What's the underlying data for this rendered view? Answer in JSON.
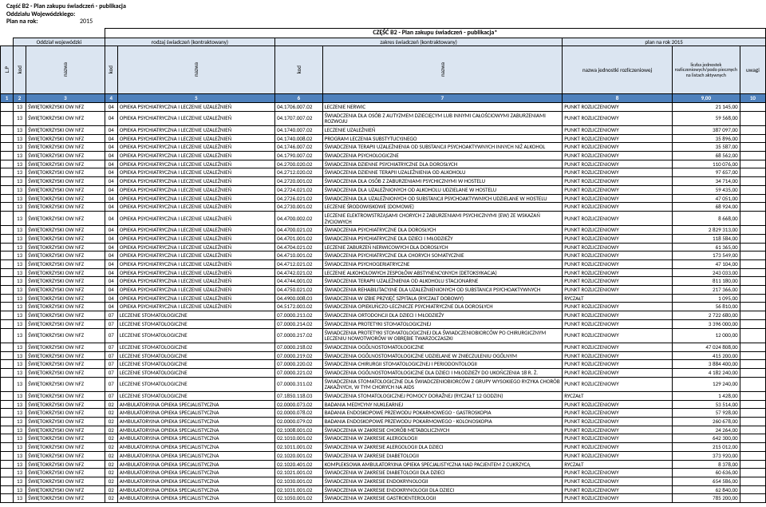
{
  "doc": {
    "title1": "Część B2 - Plan zakupu świadczeń - publikacja",
    "title2": "Oddziału Wojewódzkiego:",
    "plan_label": "Plan na rok:",
    "plan_year": "2015"
  },
  "colors": {
    "header_bg": "#dbe5f1",
    "num_head_bg": "#4f81bd",
    "num_head_fg": "#ffffff",
    "border": "#000000"
  },
  "top": {
    "banner": "CZĘŚĆ B2 - Plan zakupu świadczeń - publikacja*",
    "group_oddzial": "Oddział wojewódzki",
    "group_rodzaj": "rodzaj świadczeń (kontraktowany)",
    "group_zakres": "zakres świadczeń (kontraktowany)",
    "group_plan": "plan na rok 2015",
    "lp": "L.P",
    "kod": "kod",
    "nazwa": "nazwa",
    "jedn": "nazwa jednostki rozliczeniowej",
    "liczba": "liczba jednostek rozliczeniowych/podo piecznych na listach aktywnych",
    "uwagi": "uwagi"
  },
  "num_head": [
    "1",
    "2",
    "3",
    "4",
    "5",
    "6",
    "7",
    "8",
    "9,00",
    "10"
  ],
  "rows": [
    {
      "n": "13",
      "ow": "ŚWIĘTOKRZYSKI OW NFZ",
      "rk": "04",
      "rn": "OPIEKA PSYCHIATRYCZNA I LECZENIE UZALEŻNIEŃ",
      "zk": "04.1706.007.02",
      "zn": "LECZENIE NERWIC",
      "j": "PUNKT ROZLICZENIOWY",
      "v": "21 145,00"
    },
    {
      "n": "13",
      "ow": "ŚWIĘTOKRZYSKI OW NFZ",
      "rk": "04",
      "rn": "OPIEKA PSYCHIATRYCZNA I LECZENIE UZALEŻNIEŃ",
      "zk": "04.1707.007.02",
      "zn": "ŚWIADCZENIA DLA OSÓB Z AUTYZMEM DZIECIĘCYM LUB INNYMI CAŁOŚCIOWYMI ZABURZENIAMI ROZWOJU",
      "j": "PUNKT ROZLICZENIOWY",
      "v": "59 568,00"
    },
    {
      "n": "13",
      "ow": "ŚWIĘTOKRZYSKI OW NFZ",
      "rk": "04",
      "rn": "OPIEKA PSYCHIATRYCZNA I LECZENIE UZALEŻNIEŃ",
      "zk": "04.1740.007.02",
      "zn": "LECZENIE UZALEŻNIEŃ",
      "j": "PUNKT ROZLICZENIOWY",
      "v": "387 097,00"
    },
    {
      "n": "13",
      "ow": "ŚWIĘTOKRZYSKI OW NFZ",
      "rk": "04",
      "rn": "OPIEKA PSYCHIATRYCZNA I LECZENIE UZALEŻNIEŃ",
      "zk": "04.1740.008.02",
      "zn": "PROGRAM LECZENIA SUBSTYTUCYJNEGO",
      "j": "PUNKT ROZLICZENIOWY",
      "v": "35 896,00"
    },
    {
      "n": "13",
      "ow": "ŚWIĘTOKRZYSKI OW NFZ",
      "rk": "04",
      "rn": "OPIEKA PSYCHIATRYCZNA I LECZENIE UZALEŻNIEŃ",
      "zk": "04.1746.007.02",
      "zn": "ŚWIADCZENIA TERAPII UZALEŻNIENIA OD SUBSTANCJI PSYCHOAKTYWNYCH INNYCH NIŻ ALKOHOL",
      "j": "PUNKT ROZLICZENIOWY",
      "v": "35 587,00"
    },
    {
      "n": "13",
      "ow": "ŚWIĘTOKRZYSKI OW NFZ",
      "rk": "04",
      "rn": "OPIEKA PSYCHIATRYCZNA I LECZENIE UZALEŻNIEŃ",
      "zk": "04.1790.007.02",
      "zn": "ŚWIADCZENIA PSYCHOLOGICZNE",
      "j": "PUNKT ROZLICZENIOWY",
      "v": "68 562,00"
    },
    {
      "n": "13",
      "ow": "ŚWIĘTOKRZYSKI OW NFZ",
      "rk": "04",
      "rn": "OPIEKA PSYCHIATRYCZNA I LECZENIE UZALEŻNIEŃ",
      "zk": "04.2700.020.02",
      "zn": "ŚWIADCZENIA DZIENNE PSYCHIATRYCZNE DLA DOROSŁYCH",
      "j": "PUNKT ROZLICZENIOWY",
      "v": "110 076,00"
    },
    {
      "n": "13",
      "ow": "ŚWIĘTOKRZYSKI OW NFZ",
      "rk": "04",
      "rn": "OPIEKA PSYCHIATRYCZNA I LECZENIE UZALEŻNIEŃ",
      "zk": "04.2712.020.02",
      "zn": "ŚWIADCZENIA DZIENNE TERAPII UZALEŻNIENIA OD ALKOHOLU",
      "j": "PUNKT ROZLICZENIOWY",
      "v": "97 657,00"
    },
    {
      "n": "13",
      "ow": "ŚWIĘTOKRZYSKI OW NFZ",
      "rk": "04",
      "rn": "OPIEKA PSYCHIATRYCZNA I LECZENIE UZALEŻNIEŃ",
      "zk": "04.2720.001.02",
      "zn": "ŚWIADCZENIA DLA OSÓB Z ZABURZENIAMI PSYCHICZNYMI W HOSTELU",
      "j": "PUNKT ROZLICZENIOWY",
      "v": "34 714,00"
    },
    {
      "n": "13",
      "ow": "ŚWIĘTOKRZYSKI OW NFZ",
      "rk": "04",
      "rn": "OPIEKA PSYCHIATRYCZNA I LECZENIE UZALEŻNIEŃ",
      "zk": "04.2724.021.02",
      "zn": "ŚWIADCZENIA DLA UZALEŻNIONYCH OD ALKOHOLU UDZIELANE W HOSTELU",
      "j": "PUNKT ROZLICZENIOWY",
      "v": "59 435,00"
    },
    {
      "n": "13",
      "ow": "ŚWIĘTOKRZYSKI OW NFZ",
      "rk": "04",
      "rn": "OPIEKA PSYCHIATRYCZNA I LECZENIE UZALEŻNIEŃ",
      "zk": "04.2726.021.02",
      "zn": "ŚWIADCZENIA  DLA UZALEŻNIONYCH OD SUBSTANCJI PSYCHOAKTYWNYCH UDZIELANE W HOSTELU",
      "j": "PUNKT ROZLICZENIOWY",
      "v": "47 051,00"
    },
    {
      "n": "13",
      "ow": "ŚWIĘTOKRZYSKI OW NFZ",
      "rk": "04",
      "rn": "OPIEKA PSYCHIATRYCZNA I LECZENIE UZALEŻNIEŃ",
      "zk": "04.2730.001.02",
      "zn": "LECZENIE ŚRODOWISKOWE (DOMOWE)",
      "j": "PUNKT ROZLICZENIOWY",
      "v": "68 924,00"
    },
    {
      "n": "13",
      "ow": "ŚWIĘTOKRZYSKI OW NFZ",
      "rk": "04",
      "rn": "OPIEKA PSYCHIATRYCZNA I LECZENIE UZALEŻNIEŃ",
      "zk": "04.4700.002.02",
      "zn": "LECZENIE ELEKTROWSTRZĄSAMI CHORYCH Z ZABURZENIAMI PSYCHICZNYMI (EW) ZE WSKAZAŃ ŻYCIOWYCH",
      "j": "PUNKT ROZLICZENIOWY",
      "v": "8 668,00"
    },
    {
      "n": "13",
      "ow": "ŚWIĘTOKRZYSKI OW NFZ",
      "rk": "04",
      "rn": "OPIEKA PSYCHIATRYCZNA I LECZENIE UZALEŻNIEŃ",
      "zk": "04.4700.021.02",
      "zn": "ŚWIADCZENIA PSYCHIATRYCZNE DLA DOROSŁYCH",
      "j": "PUNKT ROZLICZENIOWY",
      "v": "2 829 313,00"
    },
    {
      "n": "13",
      "ow": "ŚWIĘTOKRZYSKI OW NFZ",
      "rk": "04",
      "rn": "OPIEKA PSYCHIATRYCZNA I LECZENIE UZALEŻNIEŃ",
      "zk": "04.4701.001.02",
      "zn": "ŚWIADCZENIA  PSYCHIATRYCZNE DLA DZIECI I MŁODZIEŻY",
      "j": "PUNKT ROZLICZENIOWY",
      "v": "118 584,00"
    },
    {
      "n": "13",
      "ow": "ŚWIĘTOKRZYSKI OW NFZ",
      "rk": "04",
      "rn": "OPIEKA PSYCHIATRYCZNA I LECZENIE UZALEŻNIEŃ",
      "zk": "04.4704.021.02",
      "zn": "LECZENIE ZABURZEŃ NERWICOWYCH DLA DOROSŁYCH",
      "j": "PUNKT ROZLICZENIOWY",
      "v": "61 365,00"
    },
    {
      "n": "13",
      "ow": "ŚWIĘTOKRZYSKI OW NFZ",
      "rk": "04",
      "rn": "OPIEKA PSYCHIATRYCZNA I LECZENIE UZALEŻNIEŃ",
      "zk": "04.4710.001.02",
      "zn": "ŚWIADCZENIA PSYCHIATRYCZNE DLA CHORYCH SOMATYCZNIE",
      "j": "PUNKT ROZLICZENIOWY",
      "v": "173 549,00"
    },
    {
      "n": "13",
      "ow": "ŚWIĘTOKRZYSKI OW NFZ",
      "rk": "04",
      "rn": "OPIEKA PSYCHIATRYCZNA I LECZENIE UZALEŻNIEŃ",
      "zk": "04.4712.021.02",
      "zn": "ŚWIADCZENIA PSYCHOGERIATRYCZNE",
      "j": "PUNKT ROZLICZENIOWY",
      "v": "47 104,00"
    },
    {
      "n": "13",
      "ow": "ŚWIĘTOKRZYSKI OW NFZ",
      "rk": "04",
      "rn": "OPIEKA PSYCHIATRYCZNA I LECZENIE UZALEŻNIEŃ",
      "zk": "04.4742.021.02",
      "zn": "LECZENIE ALKOHOLOWYCH ZESPOŁÓW ABSTYNENCYJNYCH (DETOKSYKACJA)",
      "j": "PUNKT ROZLICZENIOWY",
      "v": "243 033,00"
    },
    {
      "n": "13",
      "ow": "ŚWIĘTOKRZYSKI OW NFZ",
      "rk": "04",
      "rn": "OPIEKA PSYCHIATRYCZNA I LECZENIE UZALEŻNIEŃ",
      "zk": "04.4744.001.02",
      "zn": "ŚWIADCZENIA TERAPII UZALEŻNIENIA OD ALKOHOLU STACJONARNE",
      "j": "PUNKT ROZLICZENIOWY",
      "v": "811 180,00"
    },
    {
      "n": "13",
      "ow": "ŚWIĘTOKRZYSKI OW NFZ",
      "rk": "04",
      "rn": "OPIEKA PSYCHIATRYCZNA I LECZENIE UZALEŻNIEŃ",
      "zk": "04.4750.021.02",
      "zn": "ŚWIADCZENIA REHABILITACYJNE DLA UZALEŻNIENIONYCH OD SUBSTANCJI PSYCHOAKTYWNYCH",
      "j": "PUNKT ROZLICZENIOWY",
      "v": "217 366,00"
    },
    {
      "n": "13",
      "ow": "ŚWIĘTOKRZYSKI OW NFZ",
      "rk": "04",
      "rn": "OPIEKA PSYCHIATRYCZNA I LECZENIE UZALEŻNIEŃ",
      "zk": "04.4900.008.03",
      "zn": "ŚWIADCZENIA W IZBIE PRZYJĘĆ SZPITALA (RYCZAŁT DOBOWY)",
      "j": "RYCZAŁT",
      "v": "1 095,00"
    },
    {
      "n": "13",
      "ow": "ŚWIĘTOKRZYSKI OW NFZ",
      "rk": "04",
      "rn": "OPIEKA PSYCHIATRYCZNA I LECZENIE UZALEŻNIEŃ",
      "zk": "04.5172.003.02",
      "zn": "ŚWIADCZENIA OPIEKUŃCZO-LECZNICZE PSYCHIATRYCZNE DLA DOROSŁYCH",
      "j": "PUNKT ROZLICZENIOWY",
      "v": "56 810,00"
    },
    {
      "n": "13",
      "ow": "ŚWIĘTOKRZYSKI OW NFZ",
      "rk": "07",
      "rn": "LECZENIE STOMATOLOGICZNE",
      "zk": "07.0000.213.02",
      "zn": "ŚWIADCZENIA ORTODONCJI DLA DZIECI I MŁODZIEŻY",
      "j": "PUNKT ROZLICZENIOWY",
      "v": "2 722 680,00"
    },
    {
      "n": "13",
      "ow": "ŚWIĘTOKRZYSKI OW NFZ",
      "rk": "07",
      "rn": "LECZENIE STOMATOLOGICZNE",
      "zk": "07.0000.214.02",
      "zn": "ŚWIADCZENIA PROTETYKI STOMATOLOGICZNEJ",
      "j": "PUNKT ROZLICZENIOWY",
      "v": "3 396 000,00"
    },
    {
      "n": "13",
      "ow": "ŚWIĘTOKRZYSKI OW NFZ",
      "rk": "07",
      "rn": "LECZENIE STOMATOLOGICZNE",
      "zk": "07.0000.217.02",
      "zn": "ŚWIADCZENIA PROTETYKI STOMATOLOGICZNEJ DLA ŚWIADCZENIOBIORCÓW PO CHIRURGICZNYM LECZENIU NOWOTWORÓW W OBRĘBIE TWARZOCZASZKI",
      "j": "PUNKT ROZLICZENIOWY",
      "v": "12 000,00"
    },
    {
      "n": "13",
      "ow": "ŚWIĘTOKRZYSKI OW NFZ",
      "rk": "07",
      "rn": "LECZENIE STOMATOLOGICZNE",
      "zk": "07.0000.218.02",
      "zn": "ŚWIADCZENIA OGÓLNOSTOMATOLOGICZNE",
      "j": "PUNKT ROZLICZENIOWY",
      "v": "47 024 808,00"
    },
    {
      "n": "13",
      "ow": "ŚWIĘTOKRZYSKI OW NFZ",
      "rk": "07",
      "rn": "LECZENIE STOMATOLOGICZNE",
      "zk": "07.0000.219.02",
      "zn": "ŚWIADCZENIA OGÓLNOSTOMATOLOGICZNE UDZIELANE W ZNIECZULENIU OGÓLNYM",
      "j": "PUNKT ROZLICZENIOWY",
      "v": "415 200,00"
    },
    {
      "n": "13",
      "ow": "ŚWIĘTOKRZYSKI OW NFZ",
      "rk": "07",
      "rn": "LECZENIE STOMATOLOGICZNE",
      "zk": "07.0000.220.02",
      "zn": "ŚWIADCZENIA CHIRURGII STOMATOLOGICZNEJ I PERIODONTOLOGII",
      "j": "PUNKT ROZLICZENIOWY",
      "v": "3 884 400,00"
    },
    {
      "n": "13",
      "ow": "ŚWIĘTOKRZYSKI OW NFZ",
      "rk": "07",
      "rn": "LECZENIE STOMATOLOGICZNE",
      "zk": "07.0000.221.02",
      "zn": "ŚWIADCZENIA OGÓLNOSTOMATOLOGICZNE DLA DZIECI I MŁODZIEŻY DO UKOŃCZENIA 18 R. Ż.",
      "j": "PUNKT ROZLICZENIOWY",
      "v": "4 182 240,00"
    },
    {
      "n": "13",
      "ow": "ŚWIĘTOKRZYSKI OW NFZ",
      "rk": "07",
      "rn": "LECZENIE STOMATOLOGICZNE",
      "zk": "07.0000.311.02",
      "zn": "ŚWIADCZENIA STOMATOLOGICZNE DLA ŚWIADCZENIOBIORCÓW Z GRUPY WYSOKIEGO RYZYKA CHORÓB ZAKAŹNYCH, W TYM CHORYCH NA AIDS",
      "j": "PUNKT ROZLICZENIOWY",
      "v": "129 240,00"
    },
    {
      "n": "13",
      "ow": "ŚWIĘTOKRZYSKI OW NFZ",
      "rk": "07",
      "rn": "LECZENIE STOMATOLOGICZNE",
      "zk": "07.1850.118.03",
      "zn": "ŚWIADCZENIA STOMATOLOGICZNEJ POMOCY DORAŹNEJ (RYCZAŁT 12 GODZIN)",
      "j": "RYCZAŁT",
      "v": "1 428,00"
    },
    {
      "n": "13",
      "ow": "ŚWIĘTOKRZYSKI OW NFZ",
      "rk": "02",
      "rn": "AMBULATORYJNA OPIEKA SPECJALISTYCZNA",
      "zk": "02.0000.073.02",
      "zn": "BADANIA MEDYCYNY NUKLEARNEJ",
      "j": "PUNKT ROZLICZENIOWY",
      "v": "53 514,00"
    },
    {
      "n": "13",
      "ow": "ŚWIĘTOKRZYSKI OW NFZ",
      "rk": "02",
      "rn": "AMBULATORYJNA OPIEKA SPECJALISTYCZNA",
      "zk": "02.0000.078.02",
      "zn": "BADANIA ENDOSKOPOWE PRZEWODU POKARMOWEGO - GASTROSKOPIA",
      "j": "PUNKT ROZLICZENIOWY",
      "v": "57 928,00"
    },
    {
      "n": "13",
      "ow": "ŚWIĘTOKRZYSKI OW NFZ",
      "rk": "02",
      "rn": "AMBULATORYJNA OPIEKA SPECJALISTYCZNA",
      "zk": "02.0000.079.02",
      "zn": "BADANIA ENDOSKOPOWE PRZEWODU POKARMOWEGO - KOLONOSKOPIA",
      "j": "PUNKT ROZLICZENIOWY",
      "v": "260 678,00"
    },
    {
      "n": "13",
      "ow": "ŚWIĘTOKRZYSKI OW NFZ",
      "rk": "02",
      "rn": "AMBULATORYJNA OPIEKA SPECJALISTYCZNA",
      "zk": "02.1008.001.02",
      "zn": "ŚWIADCZENIA W ZAKRESIE CHORÓB METABOLICZNYCH",
      "j": "PUNKT ROZLICZENIOWY",
      "v": "24 264,00"
    },
    {
      "n": "13",
      "ow": "ŚWIĘTOKRZYSKI OW NFZ",
      "rk": "02",
      "rn": "AMBULATORYJNA OPIEKA SPECJALISTYCZNA",
      "zk": "02.1010.001.02",
      "zn": "ŚWIADCZENIA W ZAKRESIE ALERGOLOGII",
      "j": "PUNKT ROZLICZENIOWY",
      "v": "642 300,00"
    },
    {
      "n": "13",
      "ow": "ŚWIĘTOKRZYSKI OW NFZ",
      "rk": "02",
      "rn": "AMBULATORYJNA OPIEKA SPECJALISTYCZNA",
      "zk": "02.1011.001.02",
      "zn": "ŚWIADCZENIA W ZAKRESIE ALERGOLOGII DLA DZIECI",
      "j": "PUNKT ROZLICZENIOWY",
      "v": "215 012,00"
    },
    {
      "n": "13",
      "ow": "ŚWIĘTOKRZYSKI OW NFZ",
      "rk": "02",
      "rn": "AMBULATORYJNA OPIEKA SPECJALISTYCZNA",
      "zk": "02.1020.001.02",
      "zn": "ŚWIADCZENIA W ZAKRESIE DIABETOLOGII",
      "j": "PUNKT ROZLICZENIOWY",
      "v": "373 920,00"
    },
    {
      "n": "13",
      "ow": "ŚWIĘTOKRZYSKI OW NFZ",
      "rk": "02",
      "rn": "AMBULATORYJNA OPIEKA SPECJALISTYCZNA",
      "zk": "02.1020.401.02",
      "zn": "KOMPLEKSOWA AMBULATORYJNA OPIEKA SPECJALISTYCZNA NAD PACJENTEM Z CUKRZYCĄ",
      "j": "RYCZAŁT",
      "v": "8 378,00"
    },
    {
      "n": "13",
      "ow": "ŚWIĘTOKRZYSKI OW NFZ",
      "rk": "02",
      "rn": "AMBULATORYJNA OPIEKA SPECJALISTYCZNA",
      "zk": "02.1021.001.02",
      "zn": "ŚWIADCZENIA W ZAKRESIE DIABETOLOGII DLA DZIECI",
      "j": "PUNKT ROZLICZENIOWY",
      "v": "60 636,00"
    },
    {
      "n": "13",
      "ow": "ŚWIĘTOKRZYSKI OW NFZ",
      "rk": "02",
      "rn": "AMBULATORYJNA OPIEKA SPECJALISTYCZNA",
      "zk": "02.1030.001.02",
      "zn": "ŚWIADCZENIA W ZAKRESIE ENDOKRYNOLOGII",
      "j": "PUNKT ROZLICZENIOWY",
      "v": "654 586,00"
    },
    {
      "n": "13",
      "ow": "ŚWIĘTOKRZYSKI OW NFZ",
      "rk": "02",
      "rn": "AMBULATORYJNA OPIEKA SPECJALISTYCZNA",
      "zk": "02.1031.001.02",
      "zn": "ŚWIADCZENIA W ZAKRESIE ENDOKRYNOLOGII DLA DZIECI",
      "j": "PUNKT ROZLICZENIOWY",
      "v": "62 840,00"
    },
    {
      "n": "13",
      "ow": "ŚWIĘTOKRZYSKI OW NFZ",
      "rk": "02",
      "rn": "AMBULATORYJNA OPIEKA SPECJALISTYCZNA",
      "zk": "02.1050.001.02",
      "zn": "ŚWIADCZENIA W ZAKRESIE GASTROENTEROLOGII",
      "j": "PUNKT ROZLICZENIOWY",
      "v": "785 200,00"
    }
  ]
}
